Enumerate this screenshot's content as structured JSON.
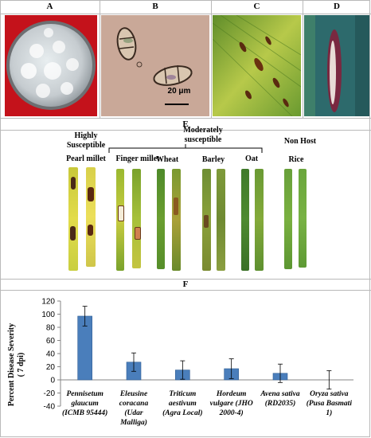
{
  "panels": {
    "A": "A",
    "B": "B",
    "C": "C",
    "D": "D",
    "E": "E",
    "F": "F"
  },
  "scale_bar": "20 μm",
  "panel_e": {
    "groups": {
      "highly": [
        "Highly",
        "Susceptible"
      ],
      "moderately": [
        "Moderately",
        "susceptible"
      ],
      "nonhost": "Non Host"
    },
    "crops": [
      "Pearl millet",
      "Finger millet",
      "Wheat",
      "Barley",
      "Oat",
      "Rice"
    ]
  },
  "chart_data": {
    "type": "bar",
    "ylabel_lines": [
      "Percent Disease Severity",
      "( 7 dpi)"
    ],
    "ylim": [
      -40,
      120
    ],
    "yticks": [
      -40,
      -20,
      0,
      20,
      40,
      60,
      80,
      100,
      120
    ],
    "grid": false,
    "bar_color": "#4a7ebb",
    "categories": [
      [
        "Pennisetum",
        "glaucum",
        "(ICMB 95444)"
      ],
      [
        "Eleusine",
        "coracana",
        "(Udar",
        "Malliga)"
      ],
      [
        "Triticum",
        "aestivum",
        "(Agra Local)"
      ],
      [
        "Hordeum",
        "vulgare (JHO",
        "2000-4)"
      ],
      [
        "Avena sativa",
        "(RD2035)"
      ],
      [
        "Oryza sativa",
        "(Pusa Basmati",
        "1)"
      ]
    ],
    "values": [
      97,
      27,
      15,
      17,
      10,
      0
    ],
    "errors": [
      15,
      14,
      14,
      15,
      14,
      14
    ]
  }
}
